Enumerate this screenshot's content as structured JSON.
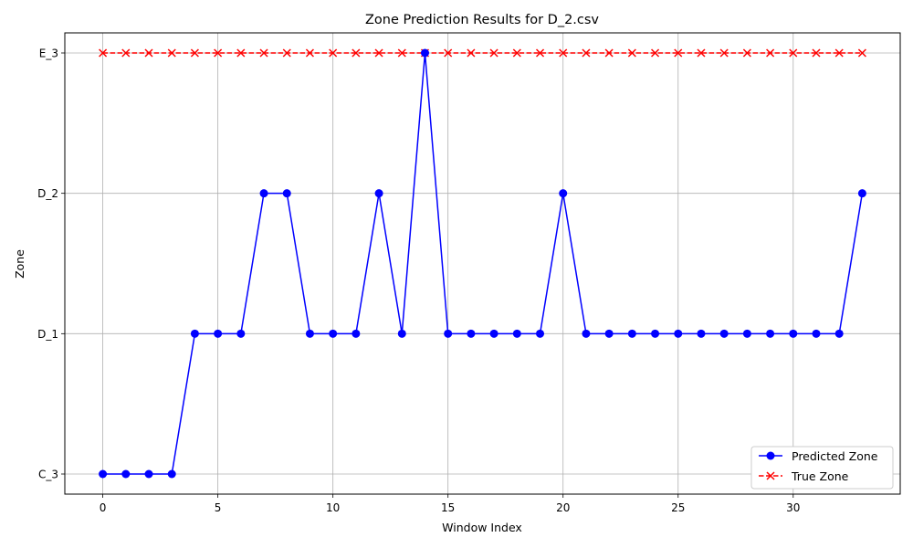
{
  "chart_data": {
    "type": "line",
    "title": "Zone Prediction Results for D_2.csv",
    "xlabel": "Window Index",
    "ylabel": "Zone",
    "x": [
      0,
      1,
      2,
      3,
      4,
      5,
      6,
      7,
      8,
      9,
      10,
      11,
      12,
      13,
      14,
      15,
      16,
      17,
      18,
      19,
      20,
      21,
      22,
      23,
      24,
      25,
      26,
      27,
      28,
      29,
      30,
      31,
      32,
      33
    ],
    "x_ticks": [
      0,
      5,
      10,
      15,
      20,
      25,
      30
    ],
    "xlim": [
      -1.65,
      34.65
    ],
    "y_categories": [
      "C_3",
      "D_1",
      "D_2",
      "E_3"
    ],
    "grid": true,
    "legend_position": "bottom-right",
    "series": [
      {
        "name": "Predicted Zone",
        "color": "#0000ff",
        "line_style": "solid",
        "marker": "circle",
        "values": [
          "C_3",
          "C_3",
          "C_3",
          "C_3",
          "D_1",
          "D_1",
          "D_1",
          "D_2",
          "D_2",
          "D_1",
          "D_1",
          "D_1",
          "D_2",
          "D_1",
          "E_3",
          "D_1",
          "D_1",
          "D_1",
          "D_1",
          "D_1",
          "D_2",
          "D_1",
          "D_1",
          "D_1",
          "D_1",
          "D_1",
          "D_1",
          "D_1",
          "D_1",
          "D_1",
          "D_1",
          "D_1",
          "D_1",
          "D_2"
        ]
      },
      {
        "name": "True Zone",
        "color": "#ff0000",
        "line_style": "dashed",
        "marker": "x",
        "values": [
          "E_3",
          "E_3",
          "E_3",
          "E_3",
          "E_3",
          "E_3",
          "E_3",
          "E_3",
          "E_3",
          "E_3",
          "E_3",
          "E_3",
          "E_3",
          "E_3",
          "E_3",
          "E_3",
          "E_3",
          "E_3",
          "E_3",
          "E_3",
          "E_3",
          "E_3",
          "E_3",
          "E_3",
          "E_3",
          "E_3",
          "E_3",
          "E_3",
          "E_3",
          "E_3",
          "E_3",
          "E_3",
          "E_3",
          "E_3"
        ]
      }
    ]
  }
}
